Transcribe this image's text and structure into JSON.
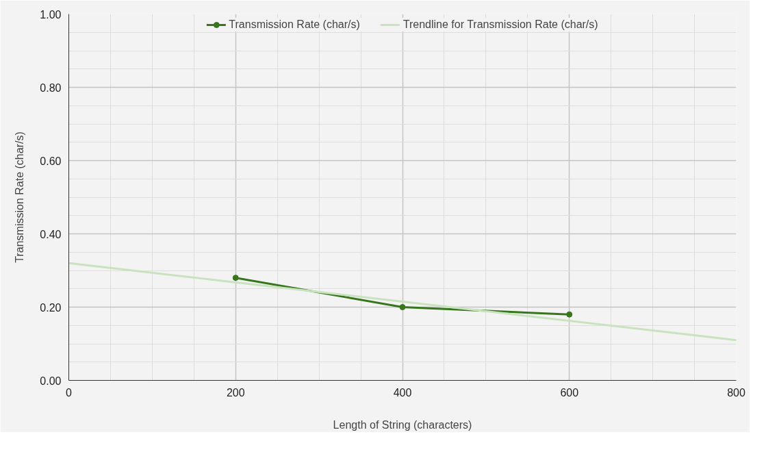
{
  "chart_data": {
    "type": "line",
    "xlabel": "Length of String (characters)",
    "ylabel": "Transmission Rate (char/s)",
    "xlim": [
      0,
      800
    ],
    "xticks": [
      0,
      200,
      400,
      600,
      800
    ],
    "ylim": [
      0,
      1
    ],
    "yticks": [
      {
        "value": 0,
        "label": "0.00"
      },
      {
        "value": 0.2,
        "label": "0.20"
      },
      {
        "value": 0.4,
        "label": "0.40"
      },
      {
        "value": 0.6,
        "label": "0.60"
      },
      {
        "value": 0.8,
        "label": "0.80"
      },
      {
        "value": 1,
        "label": "1.00"
      }
    ],
    "grid": true,
    "legend": "top",
    "x": [
      200,
      400,
      600
    ],
    "series": [
      {
        "name": "Transmission Rate (char/s)",
        "color": "#38761d",
        "marker": "circle",
        "values": [
          0.28,
          0.2,
          0.18
        ]
      },
      {
        "name": "Trendline for Transmission Rate (char/s)",
        "color": "#c9e2bf",
        "type": "line",
        "marker": "none",
        "x": [
          0,
          800
        ],
        "values": [
          0.32,
          0.11
        ]
      }
    ]
  }
}
